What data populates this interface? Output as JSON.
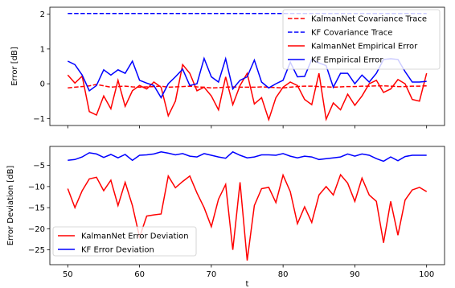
{
  "chart_data": [
    {
      "type": "line",
      "ylabel": "Error [dB]",
      "xlabel": "",
      "xlim": [
        47.5,
        102.5
      ],
      "ylim": [
        -1.2,
        2.2
      ],
      "yticks": [
        -1,
        0,
        1,
        2
      ],
      "xticks": [
        50,
        60,
        70,
        80,
        90,
        100
      ],
      "xtick_labels_shown": false,
      "grid": false,
      "legend_position": "top-right",
      "x": [
        50,
        51,
        52,
        53,
        54,
        55,
        56,
        57,
        58,
        59,
        60,
        61,
        62,
        63,
        64,
        65,
        66,
        67,
        68,
        69,
        70,
        71,
        72,
        73,
        74,
        75,
        76,
        77,
        78,
        79,
        80,
        81,
        82,
        83,
        84,
        85,
        86,
        87,
        88,
        89,
        90,
        91,
        92,
        93,
        94,
        95,
        96,
        97,
        98,
        99,
        100
      ],
      "series": [
        {
          "name": "KalmanNet Covariance Trace",
          "color": "#ff0000",
          "dash": "dashed",
          "values": [
            -0.12,
            -0.1,
            -0.08,
            -0.06,
            -0.02,
            -0.06,
            -0.1,
            -0.08,
            -0.07,
            -0.09,
            -0.1,
            -0.09,
            -0.08,
            -0.07,
            -0.1,
            -0.09,
            -0.08,
            -0.07,
            -0.09,
            -0.1,
            -0.12,
            -0.11,
            -0.1,
            -0.09,
            -0.1,
            -0.1,
            -0.1,
            -0.09,
            -0.1,
            -0.11,
            -0.12,
            -0.1,
            -0.08,
            -0.07,
            -0.07,
            -0.08,
            -0.09,
            -0.1,
            -0.09,
            -0.08,
            -0.08,
            -0.07,
            -0.07,
            -0.06,
            -0.06,
            -0.07,
            -0.08,
            -0.08,
            -0.07,
            -0.07,
            -0.06
          ]
        },
        {
          "name": "KF Covariance Trace",
          "color": "#0000ff",
          "dash": "dashed",
          "values": [
            2.02,
            2.02,
            2.02,
            2.02,
            2.02,
            2.02,
            2.02,
            2.02,
            2.02,
            2.02,
            2.02,
            2.02,
            2.02,
            2.02,
            2.02,
            2.02,
            2.02,
            2.02,
            2.02,
            2.02,
            2.02,
            2.02,
            2.02,
            2.02,
            2.02,
            2.02,
            2.02,
            2.02,
            2.02,
            2.02,
            2.02,
            2.02,
            2.02,
            2.02,
            2.02,
            2.02,
            2.02,
            2.02,
            2.02,
            2.02,
            2.02,
            2.02,
            2.02,
            2.02,
            2.02,
            2.02,
            2.02,
            2.02,
            2.02,
            2.02,
            2.02
          ]
        },
        {
          "name": "KalmanNet Empirical Error",
          "color": "#ff0000",
          "dash": "solid",
          "values": [
            0.25,
            0.02,
            0.22,
            -0.8,
            -0.9,
            -0.35,
            -0.72,
            0.1,
            -0.65,
            -0.2,
            -0.05,
            -0.15,
            0.05,
            -0.1,
            -0.92,
            -0.5,
            0.55,
            0.3,
            -0.2,
            -0.1,
            -0.35,
            -0.75,
            0.2,
            -0.6,
            -0.05,
            0.3,
            -0.58,
            -0.4,
            -1.03,
            -0.4,
            -0.1,
            0.05,
            -0.05,
            -0.45,
            -0.6,
            0.3,
            -1.02,
            -0.55,
            -0.75,
            -0.3,
            -0.62,
            -0.35,
            0.0,
            0.1,
            -0.25,
            -0.15,
            0.12,
            0.0,
            -0.45,
            -0.5,
            0.3
          ]
        },
        {
          "name": "KF Empirical Error",
          "color": "#0000ff",
          "dash": "solid",
          "values": [
            0.65,
            0.55,
            0.25,
            -0.2,
            -0.05,
            0.4,
            0.25,
            0.4,
            0.3,
            0.65,
            0.1,
            0.02,
            -0.05,
            -0.4,
            0.0,
            0.2,
            0.42,
            -0.05,
            0.0,
            0.73,
            0.2,
            0.05,
            0.72,
            -0.15,
            0.1,
            0.2,
            0.68,
            0.05,
            -0.12,
            0.0,
            0.1,
            0.62,
            0.2,
            0.21,
            0.7,
            0.6,
            0.52,
            -0.1,
            0.3,
            0.3,
            0.0,
            0.25,
            0.05,
            0.3,
            0.7,
            0.72,
            0.7,
            0.35,
            0.05,
            0.05,
            0.07
          ]
        }
      ]
    },
    {
      "type": "line",
      "xlabel": "t",
      "ylabel": "Error Deviation [dB]",
      "xlim": [
        47.5,
        102.5
      ],
      "ylim": [
        -28.5,
        -0.5
      ],
      "yticks": [
        -25,
        -20,
        -15,
        -10,
        -5
      ],
      "xticks": [
        50,
        60,
        70,
        80,
        90,
        100
      ],
      "grid": false,
      "legend_position": "bottom-left",
      "x": [
        50,
        51,
        52,
        53,
        54,
        55,
        56,
        57,
        58,
        59,
        60,
        61,
        62,
        63,
        64,
        65,
        66,
        67,
        68,
        69,
        70,
        71,
        72,
        73,
        74,
        75,
        76,
        77,
        78,
        79,
        80,
        81,
        82,
        83,
        84,
        85,
        86,
        87,
        88,
        89,
        90,
        91,
        92,
        93,
        94,
        95,
        96,
        97,
        98,
        99,
        100
      ],
      "series": [
        {
          "name": "KalmanNet Error Deviation",
          "color": "#ff0000",
          "values": [
            -10.5,
            -15.0,
            -11.0,
            -8.2,
            -7.8,
            -11.0,
            -8.5,
            -14.5,
            -9.0,
            -14.5,
            -22.0,
            -17.0,
            -16.7,
            -16.5,
            -7.5,
            -10.3,
            -8.8,
            -7.5,
            -11.5,
            -15.0,
            -19.5,
            -13.0,
            -9.5,
            -25.0,
            -9.0,
            -27.5,
            -14.5,
            -10.5,
            -10.2,
            -13.8,
            -7.3,
            -11.2,
            -18.8,
            -14.8,
            -18.5,
            -12.0,
            -10.0,
            -12.0,
            -7.2,
            -9.2,
            -13.5,
            -8.0,
            -12.0,
            -13.5,
            -23.3,
            -13.5,
            -21.5,
            -13.2,
            -10.8,
            -10.2,
            -11.2
          ]
        },
        {
          "name": "KF Error Deviation",
          "color": "#0000ff",
          "values": [
            -3.8,
            -3.6,
            -3.0,
            -2.0,
            -2.3,
            -3.1,
            -2.4,
            -3.2,
            -2.4,
            -3.8,
            -2.6,
            -2.5,
            -2.3,
            -1.8,
            -2.1,
            -2.5,
            -2.2,
            -2.8,
            -3.0,
            -2.2,
            -2.6,
            -3.0,
            -3.3,
            -1.8,
            -2.6,
            -3.2,
            -3.0,
            -2.5,
            -2.5,
            -2.6,
            -2.2,
            -2.8,
            -3.2,
            -2.8,
            -3.0,
            -3.6,
            -3.4,
            -3.2,
            -3.0,
            -2.3,
            -2.8,
            -2.3,
            -2.6,
            -3.4,
            -4.0,
            -3.0,
            -3.9,
            -2.9,
            -2.6,
            -2.6,
            -2.6
          ]
        }
      ]
    }
  ]
}
